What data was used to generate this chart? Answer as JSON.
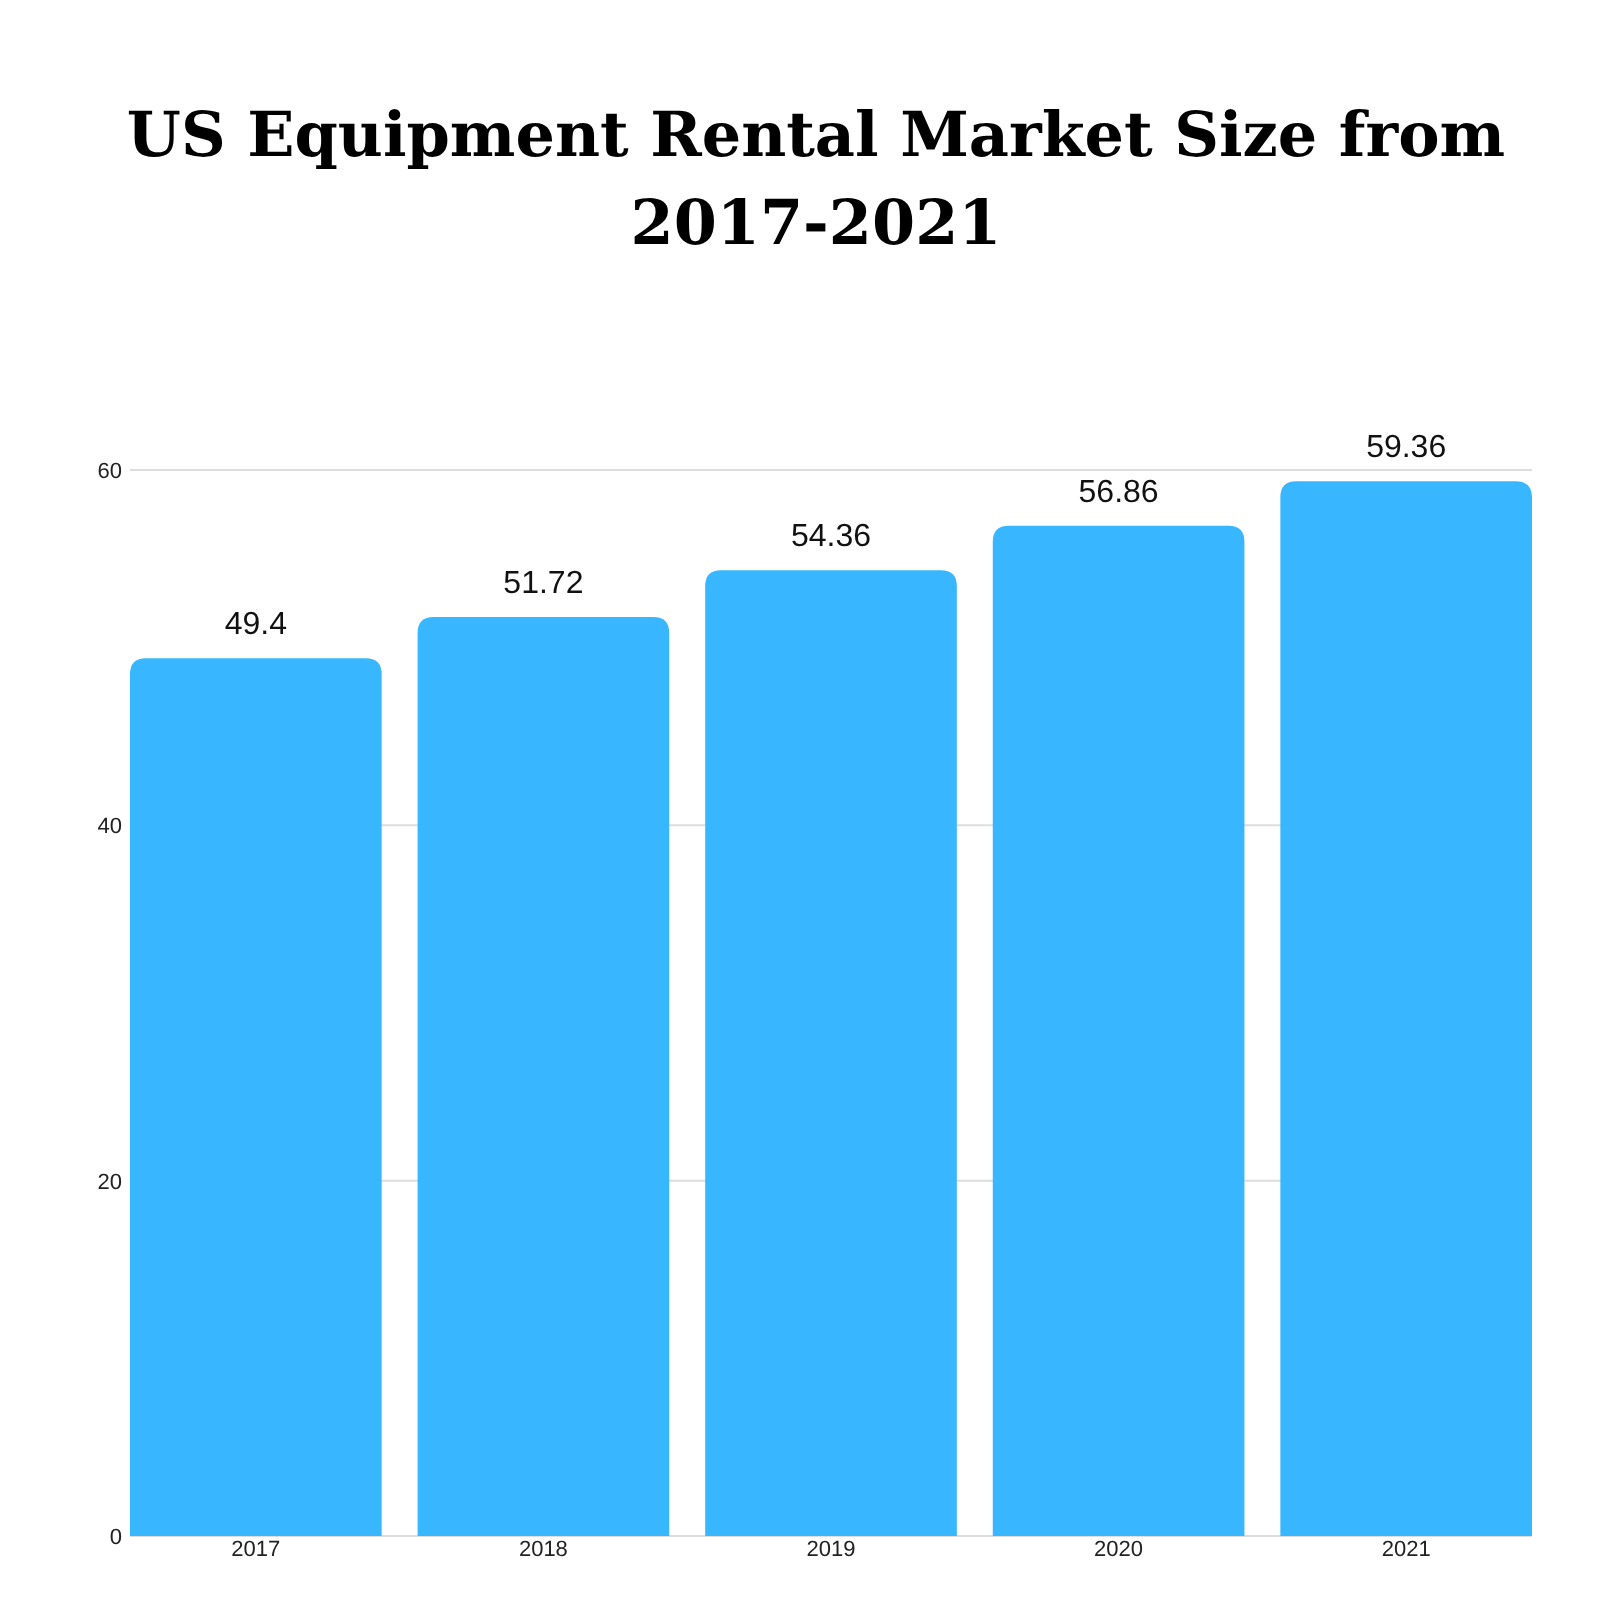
{
  "chart_data": {
    "type": "bar",
    "title": "US Equipment Rental Market Size from 2017-2021",
    "categories": [
      "2017",
      "2018",
      "2019",
      "2020",
      "2021"
    ],
    "values": [
      49.4,
      51.72,
      54.36,
      56.86,
      59.36
    ],
    "color": "#38b6ff",
    "ylim": [
      0,
      60
    ],
    "yticks": [
      0,
      20,
      40,
      60
    ],
    "grid": "y",
    "data_labels": true
  }
}
